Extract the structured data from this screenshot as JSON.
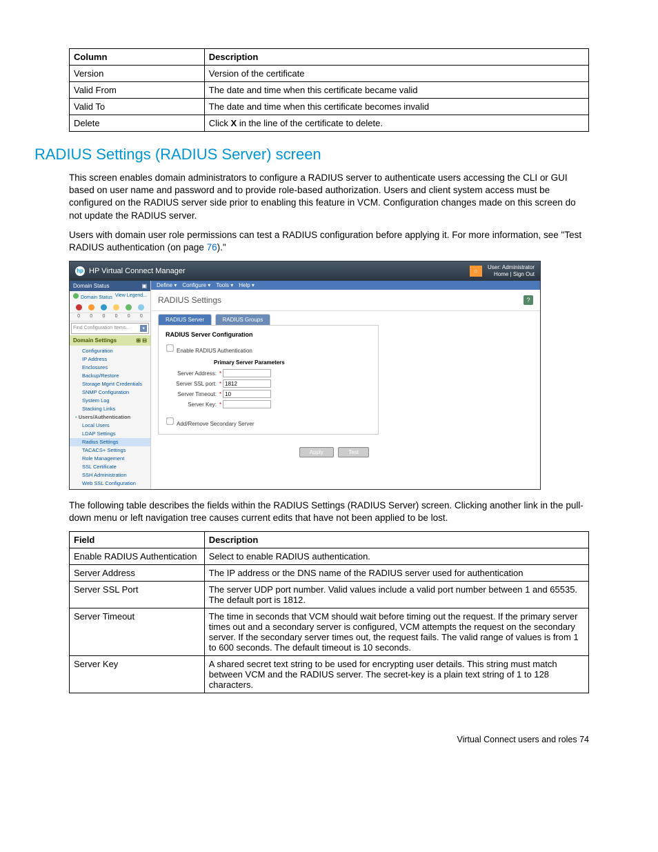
{
  "table1": {
    "headers": [
      "Column",
      "Description"
    ],
    "rows": [
      [
        "Version",
        "Version of the certificate"
      ],
      [
        "Valid From",
        "The date and time when this certificate became valid"
      ],
      [
        "Valid To",
        "The date and time when this certificate becomes invalid"
      ],
      [
        "Delete",
        "Click X in the line of the certificate to delete."
      ]
    ],
    "bold_x": true
  },
  "section_heading": "RADIUS Settings (RADIUS Server) screen",
  "para1": "This screen enables domain administrators to configure a RADIUS server to authenticate users accessing the CLI or GUI based on user name and password and to provide role-based authorization. Users and client system access must be configured on the RADIUS server side prior to enabling this feature in VCM. Configuration changes made on this screen do not update the RADIUS server.",
  "para2_pre": "Users with domain user role permissions can test a RADIUS configuration before applying it. For more information, see \"Test RADIUS authentication (on page ",
  "para2_link": "76",
  "para2_post": ").\"",
  "screenshot": {
    "app_title": "HP Virtual Connect Manager",
    "user_line1": "User: Administrator",
    "user_line2": "Home | Sign Out",
    "domain_status_label": "Domain Status",
    "view_legend": "View Legend...",
    "status_counts": [
      "0",
      "0",
      "0",
      "0",
      "0",
      "0"
    ],
    "status_colors": [
      "#cc3333",
      "#ff9933",
      "#3399cc",
      "#ffcc66",
      "#66bb66",
      "#88ccee"
    ],
    "find_placeholder": "Find Configuration Items...",
    "nav_section": "Domain Settings",
    "nav_items": [
      {
        "label": "Configuration",
        "sub": true
      },
      {
        "label": "IP Address",
        "sub": true
      },
      {
        "label": "Enclosures",
        "sub": true
      },
      {
        "label": "Backup/Restore",
        "sub": true
      },
      {
        "label": "Storage Mgmt Credentials",
        "sub": true
      },
      {
        "label": "SNMP Configuration",
        "sub": true
      },
      {
        "label": "System Log",
        "sub": true
      },
      {
        "label": "Stacking Links",
        "sub": true
      },
      {
        "label": "Users/Authentication",
        "hdr": true
      },
      {
        "label": "Local Users",
        "sub": true
      },
      {
        "label": "LDAP Settings",
        "sub": true
      },
      {
        "label": "Radius Settings",
        "sub": true,
        "sel": true
      },
      {
        "label": "TACACS+ Settings",
        "sub": true
      },
      {
        "label": "Role Management",
        "sub": true
      },
      {
        "label": "SSL Certificate",
        "sub": true
      },
      {
        "label": "SSH Administration",
        "sub": true
      },
      {
        "label": "Web SSL Configuration",
        "sub": true
      }
    ],
    "menu": [
      "Define ▾",
      "Configure ▾",
      "Tools ▾",
      "Help ▾"
    ],
    "page_title": "RADIUS Settings",
    "tabs": [
      "RADIUS Server",
      "RADIUS Groups"
    ],
    "panel_title": "RADIUS Server Configuration",
    "check_enable": "Enable RADIUS Authentication",
    "form_title": "Primary Server Parameters",
    "fields": [
      {
        "label": "Server Address:",
        "value": "",
        "req": true
      },
      {
        "label": "Server SSL port:",
        "value": "1812",
        "req": true
      },
      {
        "label": "Server Timeout:",
        "value": "10",
        "req": true
      },
      {
        "label": "Server Key:",
        "value": "",
        "req": true
      }
    ],
    "check_secondary": "Add/Remove Secondary Server",
    "btn_apply": "Apply",
    "btn_test": "Test"
  },
  "para3": "The following table describes the fields within the RADIUS Settings (RADIUS Server) screen. Clicking another link in the pull-down menu or left navigation tree causes current edits that have not been applied to be lost.",
  "table2": {
    "headers": [
      "Field",
      "Description"
    ],
    "rows": [
      [
        "Enable RADIUS Authentication",
        "Select to enable RADIUS authentication."
      ],
      [
        "Server Address",
        "The IP address or the DNS name of the RADIUS server used for authentication"
      ],
      [
        "Server SSL Port",
        "The server UDP port number. Valid values include a valid port number between 1 and 65535. The default port is 1812."
      ],
      [
        "Server Timeout",
        "The time in seconds that VCM should wait before timing out the request. If the primary server times out and a secondary server is configured, VCM attempts the request on the secondary server. If the secondary server times out, the request fails. The valid range of values is from 1 to 600 seconds. The default timeout is 10 seconds."
      ],
      [
        "Server Key",
        "A shared secret text string to be used for encrypting user details. This string must match between VCM and the RADIUS server. The secret-key is a plain text string of 1 to 128 characters."
      ]
    ]
  },
  "footer": "Virtual Connect users and roles  74"
}
